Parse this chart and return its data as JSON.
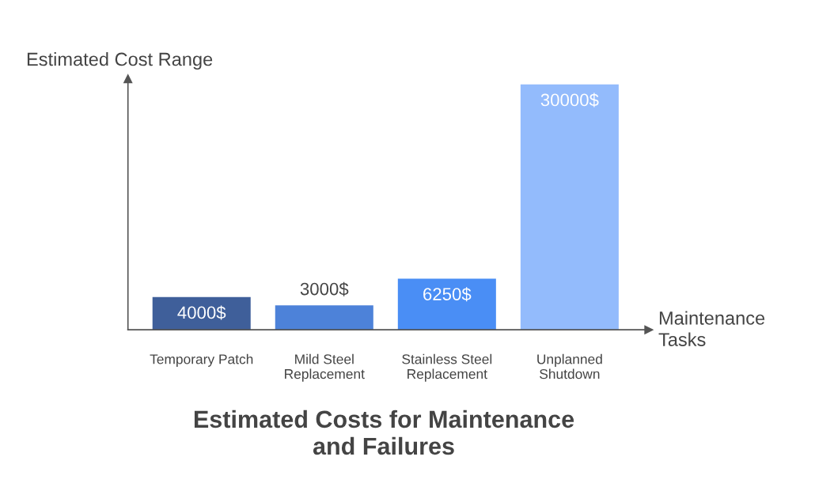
{
  "chart_data": {
    "type": "bar",
    "title": "Estimated Costs for Maintenance\nand Failures",
    "xlabel": "Maintenance\nTasks",
    "ylabel": "Estimated Cost Range",
    "categories": [
      "Temporary Patch",
      "Mild Steel\nReplacement",
      "Stainless Steel\nReplacement",
      "Unplanned\nShutdown"
    ],
    "values": [
      4000,
      3000,
      6250,
      30000
    ],
    "colors": [
      "#3f5f9a",
      "#4d82d9",
      "#4a8ef5",
      "#93bbfc"
    ],
    "value_labels": [
      "4000$",
      "3000$",
      "6250$",
      "30000$"
    ],
    "grid": false,
    "legend": false
  }
}
